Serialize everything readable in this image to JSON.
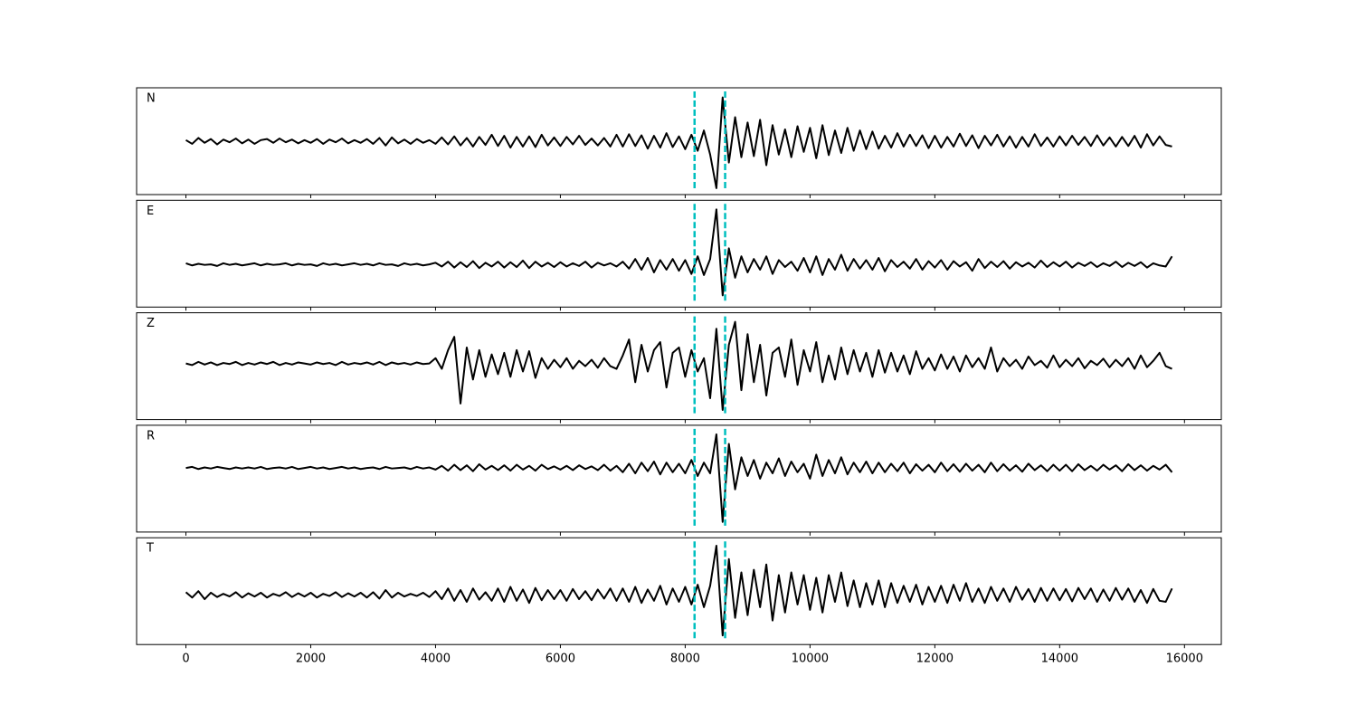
{
  "chart_data": {
    "type": "line",
    "panels": true,
    "color": "#000000",
    "xlim": [
      -790,
      16590
    ],
    "xticks": [
      0,
      2000,
      4000,
      6000,
      8000,
      10000,
      12000,
      14000,
      16000
    ],
    "ylim": [
      -1,
      1
    ],
    "vlines": [
      8150,
      8640
    ],
    "vline_color": "#00bfbf",
    "x": [
      0,
      100,
      200,
      300,
      400,
      500,
      600,
      700,
      800,
      900,
      1000,
      1100,
      1200,
      1300,
      1400,
      1500,
      1600,
      1700,
      1800,
      1900,
      2000,
      2100,
      2200,
      2300,
      2400,
      2500,
      2600,
      2700,
      2800,
      2900,
      3000,
      3100,
      3200,
      3300,
      3400,
      3500,
      3600,
      3700,
      3800,
      3900,
      4000,
      4100,
      4200,
      4300,
      4400,
      4500,
      4600,
      4700,
      4800,
      4900,
      5000,
      5100,
      5200,
      5300,
      5400,
      5500,
      5600,
      5700,
      5800,
      5900,
      6000,
      6100,
      6200,
      6300,
      6400,
      6500,
      6600,
      6700,
      6800,
      6900,
      7000,
      7100,
      7200,
      7300,
      7400,
      7500,
      7600,
      7700,
      7800,
      7900,
      8000,
      8100,
      8200,
      8300,
      8400,
      8500,
      8600,
      8700,
      8800,
      8900,
      9000,
      9100,
      9200,
      9300,
      9400,
      9500,
      9600,
      9700,
      9800,
      9900,
      10000,
      10100,
      10200,
      10300,
      10400,
      10500,
      10600,
      10700,
      10800,
      10900,
      11000,
      11100,
      11200,
      11300,
      11400,
      11500,
      11600,
      11700,
      11800,
      11900,
      12000,
      12100,
      12200,
      12300,
      12400,
      12500,
      12600,
      12700,
      12800,
      12900,
      13000,
      13100,
      13200,
      13300,
      13400,
      13500,
      13600,
      13700,
      13800,
      13900,
      14000,
      14100,
      14200,
      14300,
      14400,
      14500,
      14600,
      14700,
      14800,
      14900,
      15000,
      15100,
      15200,
      15300,
      15400,
      15500,
      15600,
      15700,
      15800
    ],
    "series": [
      {
        "name": "N",
        "values": [
          0.02,
          -0.05,
          0.06,
          -0.03,
          0.04,
          -0.06,
          0.03,
          -0.02,
          0.05,
          -0.04,
          0.03,
          -0.05,
          0.02,
          0.04,
          -0.03,
          0.05,
          -0.02,
          0.03,
          -0.04,
          0.02,
          -0.03,
          0.04,
          -0.05,
          0.03,
          -0.02,
          0.05,
          -0.04,
          0.02,
          -0.03,
          0.04,
          -0.05,
          0.06,
          -0.08,
          0.07,
          -0.04,
          0.03,
          -0.05,
          0.04,
          -0.03,
          0.02,
          -0.05,
          0.07,
          -0.06,
          0.09,
          -0.08,
          0.06,
          -0.1,
          0.08,
          -0.07,
          0.12,
          -0.09,
          0.1,
          -0.12,
          0.08,
          -0.1,
          0.09,
          -0.11,
          0.12,
          -0.08,
          0.07,
          -0.09,
          0.08,
          -0.06,
          0.1,
          -0.07,
          0.05,
          -0.08,
          0.06,
          -0.1,
          0.12,
          -0.1,
          0.13,
          -0.09,
          0.11,
          -0.14,
          0.1,
          -0.12,
          0.15,
          -0.11,
          0.09,
          -0.15,
          0.12,
          -0.18,
          0.2,
          -0.25,
          -0.88,
          0.82,
          -0.4,
          0.45,
          -0.3,
          0.35,
          -0.28,
          0.4,
          -0.45,
          0.3,
          -0.25,
          0.22,
          -0.3,
          0.28,
          -0.2,
          0.25,
          -0.32,
          0.3,
          -0.26,
          0.2,
          -0.22,
          0.25,
          -0.18,
          0.2,
          -0.15,
          0.18,
          -0.14,
          0.1,
          -0.12,
          0.15,
          -0.1,
          0.12,
          -0.09,
          0.11,
          -0.13,
          0.1,
          -0.12,
          0.08,
          -0.1,
          0.14,
          -0.09,
          0.11,
          -0.13,
          0.1,
          -0.08,
          0.12,
          -0.1,
          0.09,
          -0.12,
          0.08,
          -0.1,
          0.13,
          -0.09,
          0.07,
          -0.1,
          0.09,
          -0.08,
          0.1,
          -0.07,
          0.08,
          -0.09,
          0.11,
          -0.08,
          0.07,
          -0.1,
          0.08,
          -0.09,
          0.1,
          -0.12,
          0.13,
          -0.08,
          0.09,
          -0.07,
          -0.1
        ]
      },
      {
        "name": "E",
        "values": [
          -0.18,
          -0.22,
          -0.19,
          -0.21,
          -0.2,
          -0.23,
          -0.18,
          -0.21,
          -0.19,
          -0.22,
          -0.2,
          -0.18,
          -0.22,
          -0.19,
          -0.21,
          -0.2,
          -0.18,
          -0.22,
          -0.19,
          -0.21,
          -0.2,
          -0.23,
          -0.18,
          -0.21,
          -0.19,
          -0.22,
          -0.2,
          -0.18,
          -0.21,
          -0.19,
          -0.22,
          -0.18,
          -0.21,
          -0.2,
          -0.23,
          -0.18,
          -0.21,
          -0.19,
          -0.22,
          -0.2,
          -0.17,
          -0.24,
          -0.15,
          -0.26,
          -0.16,
          -0.25,
          -0.14,
          -0.27,
          -0.17,
          -0.24,
          -0.15,
          -0.26,
          -0.16,
          -0.25,
          -0.13,
          -0.27,
          -0.15,
          -0.24,
          -0.17,
          -0.25,
          -0.16,
          -0.24,
          -0.18,
          -0.23,
          -0.15,
          -0.26,
          -0.17,
          -0.22,
          -0.18,
          -0.24,
          -0.15,
          -0.28,
          -0.1,
          -0.3,
          -0.08,
          -0.35,
          -0.12,
          -0.3,
          -0.1,
          -0.32,
          -0.12,
          -0.38,
          -0.05,
          -0.4,
          -0.1,
          0.83,
          -0.78,
          0.1,
          -0.45,
          -0.05,
          -0.35,
          -0.1,
          -0.3,
          -0.05,
          -0.38,
          -0.12,
          -0.25,
          -0.15,
          -0.32,
          -0.08,
          -0.35,
          -0.05,
          -0.4,
          -0.1,
          -0.3,
          -0.02,
          -0.32,
          -0.1,
          -0.28,
          -0.12,
          -0.3,
          -0.08,
          -0.33,
          -0.12,
          -0.25,
          -0.15,
          -0.28,
          -0.1,
          -0.3,
          -0.14,
          -0.26,
          -0.12,
          -0.3,
          -0.14,
          -0.24,
          -0.16,
          -0.32,
          -0.1,
          -0.27,
          -0.15,
          -0.25,
          -0.14,
          -0.28,
          -0.16,
          -0.24,
          -0.17,
          -0.26,
          -0.13,
          -0.25,
          -0.16,
          -0.24,
          -0.15,
          -0.26,
          -0.17,
          -0.23,
          -0.16,
          -0.25,
          -0.18,
          -0.23,
          -0.15,
          -0.25,
          -0.17,
          -0.23,
          -0.16,
          -0.26,
          -0.18,
          -0.22,
          -0.24,
          -0.05
        ]
      },
      {
        "name": "Z",
        "values": [
          0.05,
          0.02,
          0.08,
          0.03,
          0.07,
          0.02,
          0.06,
          0.04,
          0.08,
          0.02,
          0.06,
          0.03,
          0.07,
          0.04,
          0.08,
          0.02,
          0.06,
          0.03,
          0.07,
          0.05,
          0.03,
          0.07,
          0.04,
          0.06,
          0.02,
          0.08,
          0.03,
          0.06,
          0.04,
          0.07,
          0.03,
          0.08,
          0.02,
          0.07,
          0.04,
          0.06,
          0.03,
          0.07,
          0.04,
          0.05,
          0.15,
          -0.05,
          0.3,
          0.55,
          -0.7,
          0.35,
          -0.25,
          0.3,
          -0.2,
          0.22,
          -0.15,
          0.25,
          -0.2,
          0.3,
          -0.1,
          0.28,
          -0.22,
          0.15,
          -0.05,
          0.12,
          -0.02,
          0.15,
          -0.05,
          0.1,
          0.0,
          0.12,
          -0.03,
          0.15,
          0.0,
          -0.05,
          0.2,
          0.5,
          -0.3,
          0.4,
          -0.1,
          0.3,
          0.45,
          -0.4,
          0.25,
          0.35,
          -0.2,
          0.3,
          -0.1,
          0.15,
          -0.6,
          0.7,
          -0.82,
          0.4,
          0.83,
          -0.45,
          0.6,
          -0.3,
          0.4,
          -0.55,
          0.25,
          0.35,
          -0.2,
          0.5,
          -0.35,
          0.3,
          -0.1,
          0.45,
          -0.3,
          0.2,
          -0.25,
          0.35,
          -0.15,
          0.3,
          -0.1,
          0.25,
          -0.2,
          0.3,
          -0.12,
          0.25,
          -0.1,
          0.2,
          -0.15,
          0.28,
          -0.05,
          0.15,
          -0.08,
          0.22,
          -0.05,
          0.18,
          -0.1,
          0.2,
          -0.02,
          0.15,
          -0.05,
          0.35,
          -0.1,
          0.15,
          0.0,
          0.12,
          -0.05,
          0.18,
          0.02,
          0.1,
          -0.03,
          0.2,
          -0.02,
          0.12,
          0.0,
          0.15,
          -0.04,
          0.1,
          0.02,
          0.14,
          -0.02,
          0.12,
          0.0,
          0.15,
          -0.05,
          0.2,
          -0.02,
          0.1,
          0.25,
          0.0,
          -0.05
        ]
      },
      {
        "name": "R",
        "values": [
          0.2,
          0.22,
          0.18,
          0.21,
          0.19,
          0.22,
          0.2,
          0.18,
          0.21,
          0.19,
          0.21,
          0.19,
          0.22,
          0.18,
          0.2,
          0.21,
          0.19,
          0.22,
          0.18,
          0.2,
          0.22,
          0.19,
          0.21,
          0.18,
          0.2,
          0.22,
          0.19,
          0.21,
          0.18,
          0.2,
          0.21,
          0.18,
          0.22,
          0.19,
          0.2,
          0.21,
          0.18,
          0.22,
          0.19,
          0.21,
          0.17,
          0.24,
          0.15,
          0.26,
          0.16,
          0.25,
          0.14,
          0.27,
          0.17,
          0.24,
          0.16,
          0.25,
          0.15,
          0.26,
          0.17,
          0.24,
          0.15,
          0.26,
          0.18,
          0.23,
          0.17,
          0.24,
          0.16,
          0.25,
          0.18,
          0.23,
          0.16,
          0.26,
          0.15,
          0.24,
          0.12,
          0.28,
          0.1,
          0.3,
          0.14,
          0.32,
          0.08,
          0.3,
          0.12,
          0.28,
          0.1,
          0.35,
          0.05,
          0.3,
          0.1,
          0.83,
          -0.81,
          0.65,
          -0.2,
          0.4,
          0.05,
          0.35,
          0.0,
          0.3,
          0.1,
          0.38,
          0.05,
          0.32,
          0.12,
          0.28,
          0.0,
          0.45,
          0.05,
          0.35,
          0.1,
          0.4,
          0.08,
          0.3,
          0.12,
          0.32,
          0.1,
          0.3,
          0.12,
          0.28,
          0.14,
          0.3,
          0.1,
          0.27,
          0.15,
          0.26,
          0.12,
          0.3,
          0.14,
          0.27,
          0.13,
          0.28,
          0.15,
          0.26,
          0.12,
          0.3,
          0.14,
          0.27,
          0.15,
          0.25,
          0.13,
          0.28,
          0.16,
          0.25,
          0.14,
          0.26,
          0.15,
          0.26,
          0.14,
          0.27,
          0.16,
          0.24,
          0.15,
          0.26,
          0.17,
          0.25,
          0.14,
          0.27,
          0.16,
          0.25,
          0.15,
          0.24,
          0.17,
          0.26,
          0.12
        ]
      },
      {
        "name": "T",
        "values": [
          -0.02,
          -0.12,
          0.0,
          -0.15,
          -0.03,
          -0.11,
          -0.05,
          -0.1,
          -0.02,
          -0.12,
          -0.04,
          -0.1,
          -0.03,
          -0.12,
          -0.05,
          -0.09,
          -0.02,
          -0.11,
          -0.04,
          -0.1,
          -0.03,
          -0.12,
          -0.05,
          -0.09,
          -0.02,
          -0.11,
          -0.04,
          -0.1,
          -0.03,
          -0.12,
          -0.02,
          -0.14,
          0.02,
          -0.12,
          -0.03,
          -0.1,
          -0.05,
          -0.09,
          -0.03,
          -0.11,
          0.0,
          -0.15,
          0.05,
          -0.18,
          0.02,
          -0.2,
          0.05,
          -0.16,
          -0.02,
          -0.18,
          0.05,
          -0.2,
          0.08,
          -0.18,
          0.03,
          -0.22,
          0.06,
          -0.17,
          0.02,
          -0.15,
          0.02,
          -0.18,
          0.04,
          -0.15,
          0.0,
          -0.17,
          0.03,
          -0.14,
          0.05,
          -0.18,
          0.05,
          -0.2,
          0.08,
          -0.22,
          0.03,
          -0.18,
          0.1,
          -0.25,
          0.05,
          -0.2,
          0.08,
          -0.25,
          0.12,
          -0.3,
          0.1,
          0.85,
          -0.83,
          0.6,
          -0.5,
          0.35,
          -0.45,
          0.4,
          -0.3,
          0.5,
          -0.55,
          0.3,
          -0.4,
          0.35,
          -0.25,
          0.3,
          -0.35,
          0.25,
          -0.4,
          0.3,
          -0.2,
          0.35,
          -0.28,
          0.2,
          -0.3,
          0.15,
          -0.25,
          0.2,
          -0.3,
          0.15,
          -0.22,
          0.1,
          -0.2,
          0.12,
          -0.25,
          0.08,
          -0.2,
          0.1,
          -0.22,
          0.12,
          -0.18,
          0.15,
          -0.2,
          0.05,
          -0.22,
          0.08,
          -0.18,
          0.05,
          -0.2,
          0.08,
          -0.16,
          0.04,
          -0.2,
          0.06,
          -0.18,
          0.05,
          -0.17,
          0.04,
          -0.19,
          0.06,
          -0.15,
          0.05,
          -0.2,
          0.03,
          -0.18,
          0.06,
          -0.16,
          0.05,
          -0.2,
          0.02,
          -0.22,
          0.04,
          -0.18,
          -0.2,
          0.05
        ]
      }
    ]
  }
}
